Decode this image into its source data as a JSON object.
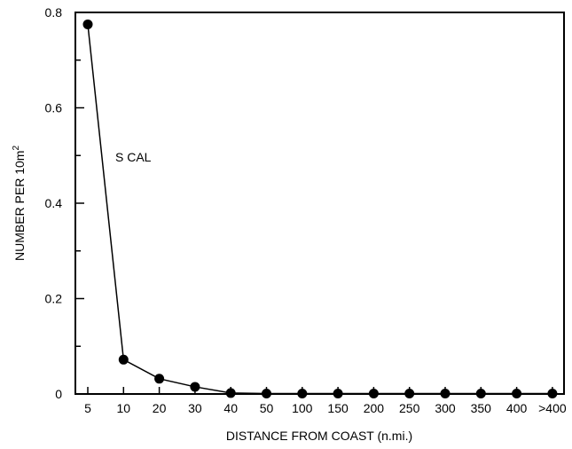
{
  "chart_data": {
    "type": "line",
    "title": "",
    "xlabel": "DISTANCE FROM COAST (n.mi.)",
    "ylabel": "NUMBER PER 10m",
    "ylabel_superscript": "2",
    "categories": [
      "5",
      "10",
      "20",
      "30",
      "40",
      "50",
      "100",
      "150",
      "200",
      "250",
      "300",
      "350",
      "400",
      ">400"
    ],
    "series": [
      {
        "values": [
          0.775,
          0.072,
          0.032,
          0.015,
          0.002,
          0.001,
          0.001,
          0.001,
          0.001,
          0.001,
          0.001,
          0.001,
          0.001,
          0.001
        ]
      }
    ],
    "ylim": [
      0,
      0.8
    ],
    "yticks": [
      0,
      0.2,
      0.4,
      0.6,
      0.8
    ],
    "ytick_labels": [
      "0",
      "0.2",
      "0.4",
      "0.6",
      "0.8"
    ],
    "annotations": [
      {
        "text": "S CAL"
      }
    ],
    "grid": false,
    "marker": "filled-circle"
  }
}
